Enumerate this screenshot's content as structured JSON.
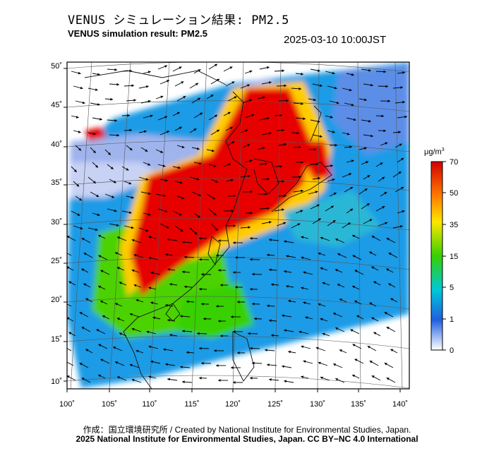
{
  "header": {
    "title_ja": "VENUS シミュレーション結果: PM2.5",
    "title_en": "VENUS simulation result: PM2.5",
    "datetime": "2025-03-10 10:00JST"
  },
  "map": {
    "lon_range": [
      100,
      142
    ],
    "lat_range": [
      9,
      51
    ],
    "lon_ticks": [
      "100˚",
      "105˚",
      "110˚",
      "115˚",
      "120˚",
      "125˚",
      "130˚",
      "135˚",
      "140˚"
    ],
    "lat_ticks": [
      "50˚",
      "45˚",
      "40˚",
      "35˚",
      "30˚",
      "25˚",
      "20˚",
      "15˚",
      "10˚"
    ],
    "variable": "PM2.5",
    "wind_vectors": "shown",
    "colors": {
      "gt70": "#e60000",
      "50": "#ff8c00",
      "35": "#ffee00",
      "15": "#4cd200",
      "5": "#00c8d2",
      "1": "#1e50dc",
      "0": "#c8d2f5"
    }
  },
  "colorbar": {
    "unit": "μg/m",
    "unit_sup": "3",
    "labels": [
      "70",
      "50",
      "35",
      "15",
      "5",
      "1",
      "0"
    ]
  },
  "footer": {
    "credit": "作成：国立環境研究所 / Created by National Institute for Environmental Studies, Japan.",
    "license": "2025 National Institute for Environmental Studies, Japan. CC BY−NC 4.0 International"
  }
}
